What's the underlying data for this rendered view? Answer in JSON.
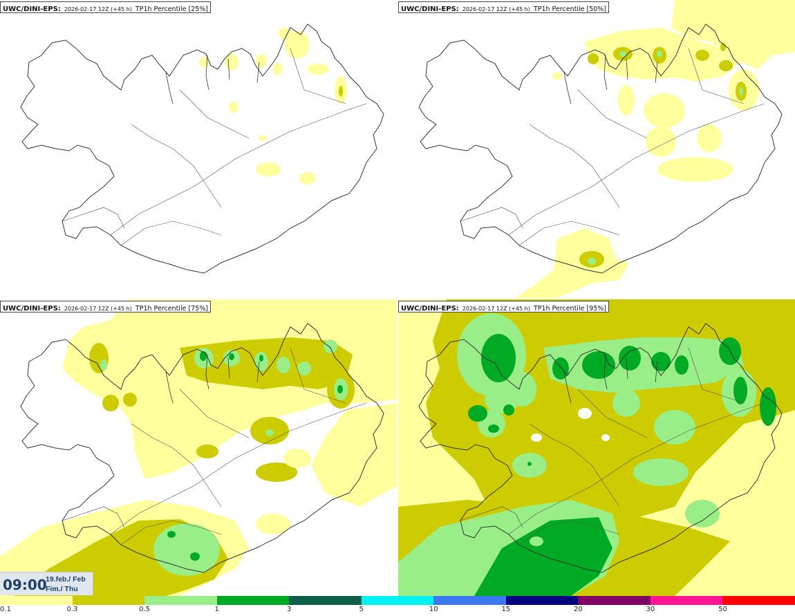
{
  "panels": [
    {
      "source": "UWC/DINI-EPS",
      "run": "2026-02-17 12Z (+45 h)",
      "param": "TP1h Percentile [25%]"
    },
    {
      "source": "UWC/DINI-EPS",
      "run": "2026-02-17 12Z (+45 h)",
      "param": "TP1h Percentile [50%]"
    },
    {
      "source": "UWC/DINI-EPS",
      "run": "2026-02-17 12Z (+45 h)",
      "param": "TP1h Percentile [75%]"
    },
    {
      "source": "UWC/DINI-EPS",
      "run": "2026-02-17 12Z (+45 h)",
      "param": "TP1h Percentile [95%]"
    }
  ],
  "valid_time": {
    "time": "09:00",
    "date": "19.feb./ Feb",
    "day": "Fim./ Thu"
  },
  "legend": {
    "labels": [
      "0.1",
      "0.3",
      "0.5",
      "1",
      "3",
      "5",
      "10",
      "15",
      "20",
      "30",
      "50"
    ],
    "colors": [
      "#ffff9e",
      "#cccc00",
      "#99ee88",
      "#00aa22",
      "#0d5f4a",
      "#00f2f2",
      "#3c78f0",
      "#000080",
      "#800066",
      "#ff1493",
      "#ff0000"
    ]
  },
  "map_colors": {
    "very_light": "#ffff9e",
    "light": "#cccc00",
    "moderate": "#99ee88",
    "heavy": "#00aa22",
    "coast": "#333333"
  }
}
